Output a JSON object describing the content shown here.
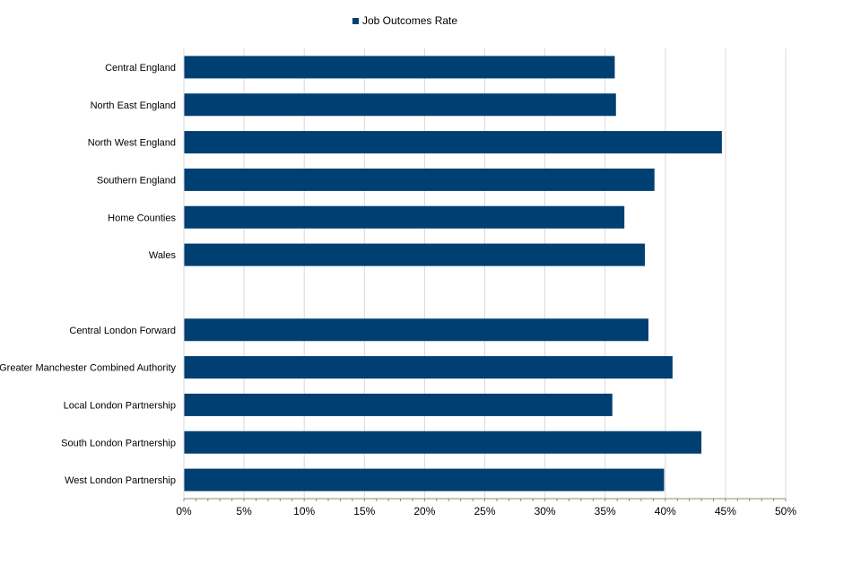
{
  "chart_data": {
    "type": "bar",
    "orientation": "horizontal",
    "categories": [
      "Central England",
      "North East England",
      "North West England",
      "Southern England",
      "Home Counties",
      "Wales",
      "",
      "Central London Forward",
      "Greater Manchester Combined Authority",
      "Local London Partnership",
      "South London Partnership",
      "West London Partnership"
    ],
    "series": [
      {
        "name": "Job Outcomes Rate",
        "values": [
          0.358,
          0.359,
          0.447,
          0.391,
          0.366,
          0.383,
          null,
          0.386,
          0.406,
          0.356,
          0.43,
          0.399
        ]
      }
    ],
    "xlim": [
      0,
      0.5
    ],
    "xticks": [
      0,
      0.05,
      0.1,
      0.15,
      0.2,
      0.25,
      0.3,
      0.35,
      0.4,
      0.45,
      0.5
    ],
    "xtick_labels": [
      "0%",
      "5%",
      "10%",
      "15%",
      "20%",
      "25%",
      "30%",
      "35%",
      "40%",
      "45%",
      "50%"
    ],
    "title": "",
    "xlabel": "",
    "ylabel": "",
    "grid": true,
    "legend_position": "top"
  },
  "colors": {
    "bar": "#003f72",
    "grid": "#d9d9d9",
    "axis": "#8c8c6e"
  }
}
